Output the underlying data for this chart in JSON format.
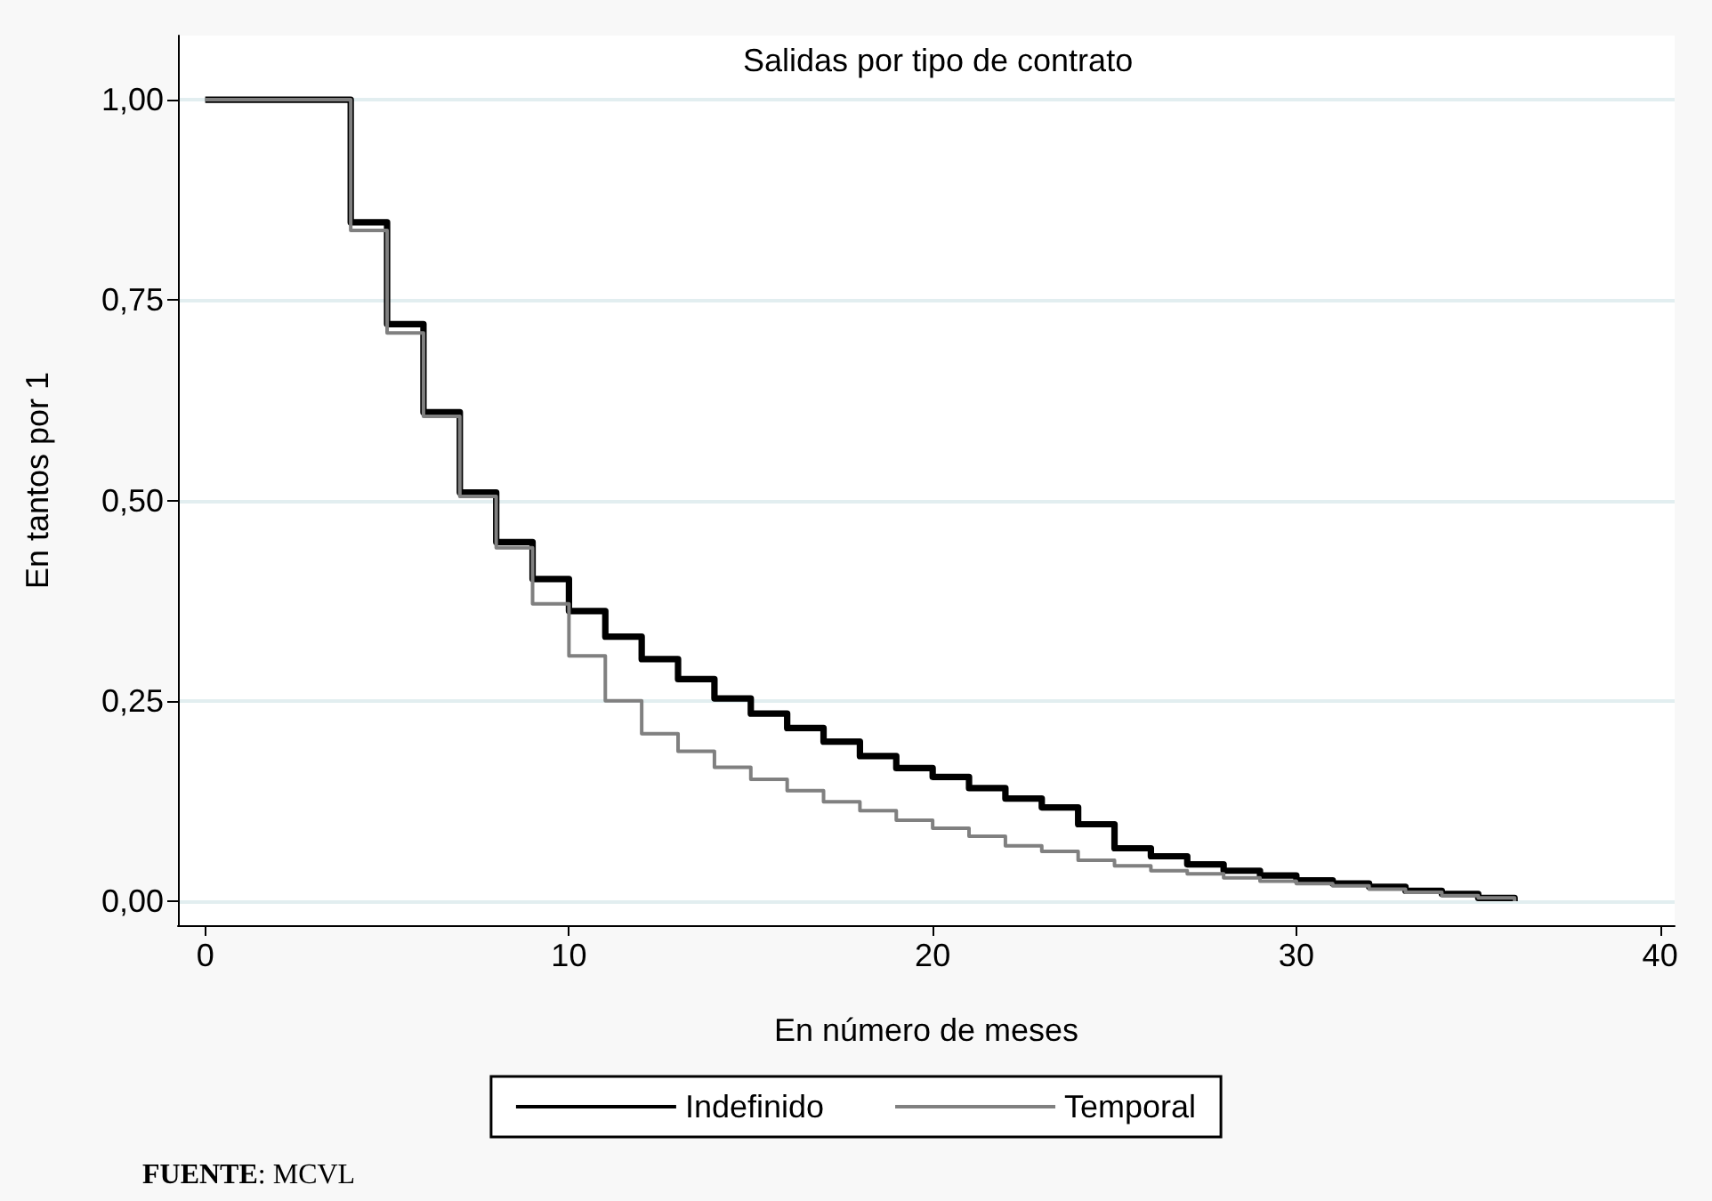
{
  "chart_data": {
    "type": "step",
    "title": "Salidas por tipo de contrato",
    "xlabel": "En número de meses",
    "ylabel": "En tantos por 1",
    "annotations": [
      "FUENTE: MCVL"
    ],
    "xlim": [
      -0.75,
      40.4
    ],
    "xticks": [
      0,
      10,
      20,
      30,
      40
    ],
    "ylim": [
      -0.03,
      1.08
    ],
    "yticks": [
      {
        "value": 0,
        "label": "0,00"
      },
      {
        "value": 0.25,
        "label": "0,25"
      },
      {
        "value": 0.5,
        "label": "0,50"
      },
      {
        "value": 0.75,
        "label": "0,75"
      },
      {
        "value": 1,
        "label": "1,00"
      }
    ],
    "grid": "y",
    "legend": "bottom",
    "marker": "none",
    "line_style": "solid",
    "series": [
      {
        "name": "Indefinido",
        "color": "#000000",
        "x": [
          0,
          4,
          5,
          6,
          7,
          8,
          9,
          10,
          11,
          12,
          13,
          14,
          15,
          16,
          17,
          18,
          19,
          20,
          21,
          22,
          23,
          24,
          25,
          26,
          27,
          28,
          29,
          30,
          31,
          32,
          33,
          34,
          35,
          36
        ],
        "values": [
          1.0,
          0.847,
          0.72,
          0.61,
          0.51,
          0.448,
          0.402,
          0.362,
          0.33,
          0.302,
          0.277,
          0.253,
          0.234,
          0.216,
          0.199,
          0.181,
          0.166,
          0.155,
          0.141,
          0.128,
          0.117,
          0.096,
          0.066,
          0.056,
          0.046,
          0.038,
          0.032,
          0.026,
          0.022,
          0.018,
          0.013,
          0.009,
          0.004,
          0.0
        ]
      },
      {
        "name": "Temporal",
        "color": "#808080",
        "x": [
          0,
          4,
          5,
          6,
          7,
          8,
          9,
          10,
          11,
          12,
          13,
          14,
          15,
          16,
          17,
          18,
          19,
          20,
          21,
          22,
          23,
          24,
          25,
          26,
          27,
          28,
          29,
          30,
          31,
          32,
          33,
          34,
          35,
          36
        ],
        "values": [
          1.0,
          0.837,
          0.709,
          0.605,
          0.505,
          0.441,
          0.371,
          0.306,
          0.25,
          0.209,
          0.187,
          0.167,
          0.152,
          0.138,
          0.124,
          0.113,
          0.101,
          0.091,
          0.081,
          0.069,
          0.062,
          0.051,
          0.044,
          0.038,
          0.034,
          0.029,
          0.025,
          0.022,
          0.019,
          0.015,
          0.011,
          0.007,
          0.004,
          0.0
        ]
      }
    ]
  }
}
